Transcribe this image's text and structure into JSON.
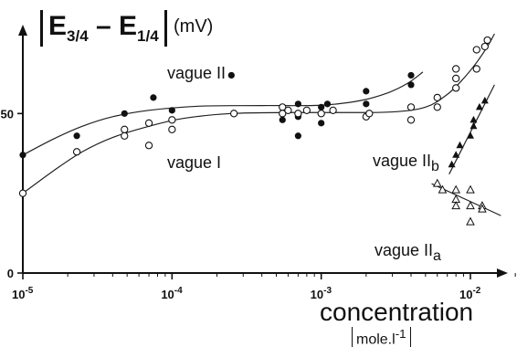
{
  "chart_data": {
    "type": "scatter",
    "title": "",
    "ylabel": {
      "main": "E",
      "sub1": "3/4",
      "minus": " – E",
      "sub2": "1/4",
      "unit": "(mV)"
    },
    "xlabel": "concentration",
    "xunit": "mole.l",
    "xunit_sup": "-1",
    "x_scale": "log",
    "xlim": [
      1e-05,
      0.02
    ],
    "ylim": [
      0,
      75
    ],
    "x_ticks": [
      {
        "value": 1e-05,
        "base": "10",
        "exp": "-5"
      },
      {
        "value": 0.0001,
        "base": "10",
        "exp": "-4"
      },
      {
        "value": 0.001,
        "base": "10",
        "exp": "-3"
      },
      {
        "value": 0.01,
        "base": "10",
        "exp": "-2"
      }
    ],
    "y_ticks": [
      {
        "value": 0,
        "label": "0"
      },
      {
        "value": 50,
        "label": "50"
      }
    ],
    "grid": false,
    "series": [
      {
        "name": "vague II",
        "marker": "filled-circle",
        "points": [
          [
            1e-05,
            37
          ],
          [
            2.3e-05,
            43
          ],
          [
            4.8e-05,
            50
          ],
          [
            7.5e-05,
            55
          ],
          [
            0.0001,
            51
          ],
          [
            0.00025,
            62
          ],
          [
            0.00055,
            50
          ],
          [
            0.00055,
            48
          ],
          [
            0.0007,
            53
          ],
          [
            0.0007,
            49
          ],
          [
            0.0007,
            43
          ],
          [
            0.001,
            47
          ],
          [
            0.001,
            52
          ],
          [
            0.0011,
            53
          ],
          [
            0.002,
            57
          ],
          [
            0.002,
            53
          ],
          [
            0.004,
            62
          ],
          [
            0.004,
            59
          ]
        ],
        "curve": [
          [
            1e-05,
            37
          ],
          [
            1.6e-05,
            42
          ],
          [
            2.5e-05,
            46
          ],
          [
            4e-05,
            49
          ],
          [
            7e-05,
            51
          ],
          [
            0.00015,
            52.3
          ],
          [
            0.0004,
            52.5
          ],
          [
            0.001,
            52.6
          ],
          [
            0.0018,
            54
          ],
          [
            0.0028,
            56.5
          ],
          [
            0.0038,
            59.5
          ],
          [
            0.0048,
            63
          ]
        ]
      },
      {
        "name": "vague I",
        "marker": "open-circle",
        "points": [
          [
            1e-05,
            25
          ],
          [
            2.3e-05,
            38
          ],
          [
            4.8e-05,
            43
          ],
          [
            4.8e-05,
            45
          ],
          [
            7e-05,
            40
          ],
          [
            7e-05,
            47
          ],
          [
            0.0001,
            45
          ],
          [
            0.0001,
            48
          ],
          [
            0.00026,
            50
          ],
          [
            0.00055,
            52
          ],
          [
            0.00055,
            50
          ],
          [
            0.0006,
            51
          ],
          [
            0.0007,
            50
          ],
          [
            0.0008,
            51
          ],
          [
            0.001,
            50
          ],
          [
            0.0012,
            51
          ],
          [
            0.002,
            49
          ],
          [
            0.0021,
            50
          ],
          [
            0.004,
            48
          ],
          [
            0.004,
            52
          ],
          [
            0.006,
            52
          ],
          [
            0.006,
            55
          ],
          [
            0.008,
            58
          ],
          [
            0.008,
            61
          ],
          [
            0.008,
            64
          ],
          [
            0.011,
            64
          ],
          [
            0.011,
            70
          ],
          [
            0.0125,
            71
          ],
          [
            0.013,
            73
          ]
        ],
        "curve": [
          [
            1e-05,
            25
          ],
          [
            1.6e-05,
            32
          ],
          [
            2.5e-05,
            38
          ],
          [
            4e-05,
            42.5
          ],
          [
            7e-05,
            46
          ],
          [
            0.00012,
            48.5
          ],
          [
            0.00025,
            50
          ],
          [
            0.0006,
            50.3
          ],
          [
            0.0015,
            50.3
          ],
          [
            0.003,
            50.5
          ],
          [
            0.005,
            52
          ],
          [
            0.007,
            56
          ],
          [
            0.009,
            61
          ],
          [
            0.011,
            66
          ],
          [
            0.013,
            71
          ],
          [
            0.0145,
            75
          ]
        ]
      },
      {
        "name": "vague IIb",
        "marker": "filled-triangle",
        "points": [
          [
            0.0075,
            34
          ],
          [
            0.008,
            37
          ],
          [
            0.0085,
            40
          ],
          [
            0.01,
            43
          ],
          [
            0.0105,
            46
          ],
          [
            0.0105,
            48
          ],
          [
            0.0115,
            52
          ],
          [
            0.0125,
            54
          ]
        ],
        "curve": [
          [
            0.0072,
            31
          ],
          [
            0.0145,
            59
          ]
        ]
      },
      {
        "name": "vague IIa",
        "marker": "open-triangle",
        "points": [
          [
            0.006,
            28
          ],
          [
            0.0065,
            26
          ],
          [
            0.008,
            23
          ],
          [
            0.008,
            21
          ],
          [
            0.008,
            26
          ],
          [
            0.01,
            16
          ],
          [
            0.01,
            21
          ],
          [
            0.01,
            26
          ],
          [
            0.012,
            21
          ],
          [
            0.012,
            20
          ]
        ],
        "curve": [
          [
            0.0055,
            28
          ],
          [
            0.016,
            18
          ]
        ]
      }
    ],
    "annotations": [
      {
        "series": "vague II",
        "text": "vague II"
      },
      {
        "series": "vague I",
        "text": "vague I"
      },
      {
        "series": "vague IIb",
        "text": "vague II",
        "sub": "b"
      },
      {
        "series": "vague IIa",
        "text": "vague II",
        "sub": "a"
      }
    ]
  }
}
